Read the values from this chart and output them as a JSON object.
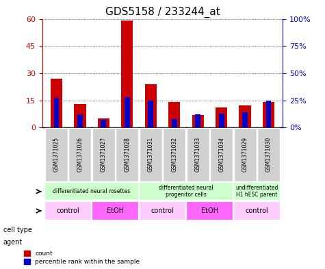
{
  "title": "GDS5158 / 233244_at",
  "samples": [
    "GSM1371025",
    "GSM1371026",
    "GSM1371027",
    "GSM1371028",
    "GSM1371031",
    "GSM1371032",
    "GSM1371033",
    "GSM1371034",
    "GSM1371029",
    "GSM1371030"
  ],
  "counts": [
    27,
    13,
    5,
    59,
    24,
    14,
    7,
    11,
    12,
    14
  ],
  "percentiles": [
    27,
    12,
    7,
    28,
    25,
    8,
    12,
    13,
    14,
    25
  ],
  "ylim_left": [
    0,
    60
  ],
  "ylim_right": [
    0,
    100
  ],
  "yticks_left": [
    0,
    15,
    30,
    45,
    60
  ],
  "yticks_right": [
    0,
    25,
    50,
    75,
    100
  ],
  "ytick_labels_right": [
    "0%",
    "25%",
    "50%",
    "75%",
    "100%"
  ],
  "cell_type_groups": [
    {
      "label": "differentiated neural rosettes",
      "start": 0,
      "end": 3,
      "color": "#ccffcc"
    },
    {
      "label": "differentiated neural\nprogenitor cells",
      "start": 4,
      "end": 7,
      "color": "#ccffcc"
    },
    {
      "label": "undifferentiated\nH1 hESC parent",
      "start": 8,
      "end": 9,
      "color": "#ccffcc"
    }
  ],
  "agent_groups": [
    {
      "label": "control",
      "start": 0,
      "end": 1,
      "color": "#ffccff"
    },
    {
      "label": "EtOH",
      "start": 2,
      "end": 3,
      "color": "#ff66ff"
    },
    {
      "label": "control",
      "start": 4,
      "end": 5,
      "color": "#ffccff"
    },
    {
      "label": "EtOH",
      "start": 6,
      "end": 7,
      "color": "#ff66ff"
    },
    {
      "label": "control",
      "start": 8,
      "end": 9,
      "color": "#ffccff"
    }
  ],
  "bar_color": "#cc0000",
  "percentile_color": "#0000cc",
  "background_color": "#ffffff",
  "grid_color": "#000000",
  "left_axis_color": "#cc0000",
  "right_axis_color": "#0000cc"
}
